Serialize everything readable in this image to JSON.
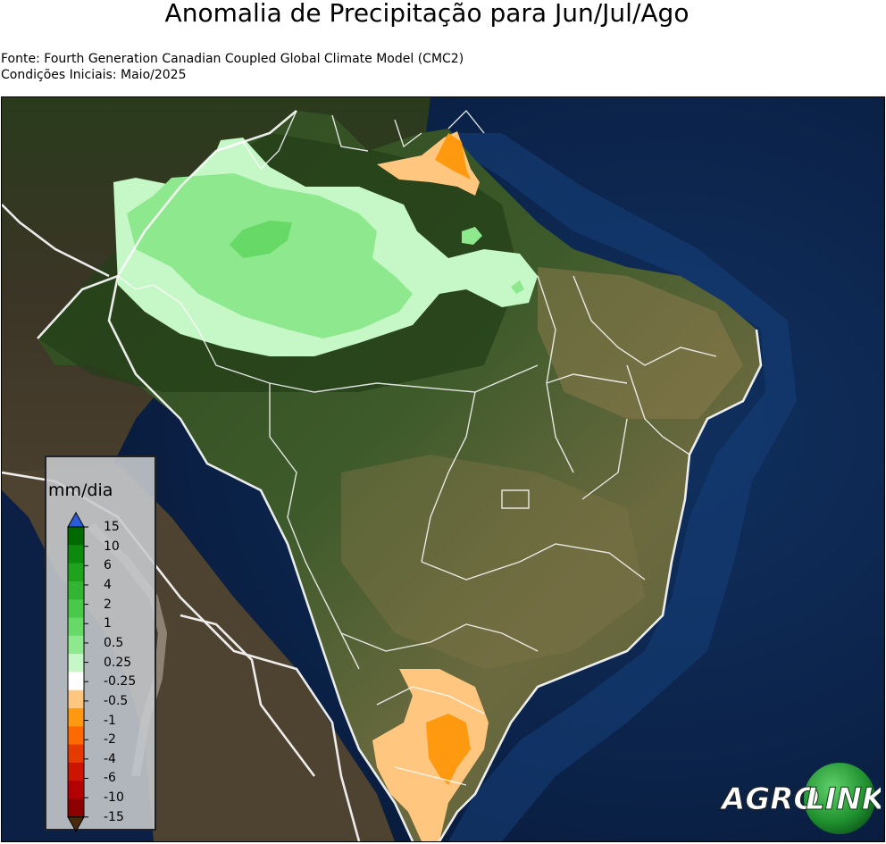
{
  "title": "Anomalia de Precipitação para Jun/Jul/Ago",
  "source_line": "Fonte: Fourth Generation Canadian Coupled Global Climate Model (CMC2)",
  "initial_conditions": "Condições Iniciais: Maio/2025",
  "legend": {
    "unit": "mm/dia",
    "ticks": [
      "15",
      "10",
      "6",
      "4",
      "2",
      "1",
      "0.5",
      "0.25",
      "-0.25",
      "-0.5",
      "-1",
      "-2",
      "-4",
      "-6",
      "-10",
      "-15"
    ],
    "colors": [
      "#006a00",
      "#0d8a0d",
      "#1fa31f",
      "#33b533",
      "#49c849",
      "#66d966",
      "#8ee88e",
      "#c6f7c6",
      "#ffffff",
      "#ffc680",
      "#ff9a10",
      "#ff6a00",
      "#e53a00",
      "#cc1400",
      "#b30000",
      "#8c0000"
    ],
    "over_color": "#2a5cd8",
    "under_color": "#4a2a0a"
  },
  "logo": {
    "part1": "AGRO",
    "part2": "LINK"
  },
  "anomaly_colors": {
    "light_green": "#c6f7c6",
    "medium_green": "#8ee88e",
    "green": "#66d966",
    "light_orange": "#ffc680",
    "orange": "#ff9a10"
  }
}
